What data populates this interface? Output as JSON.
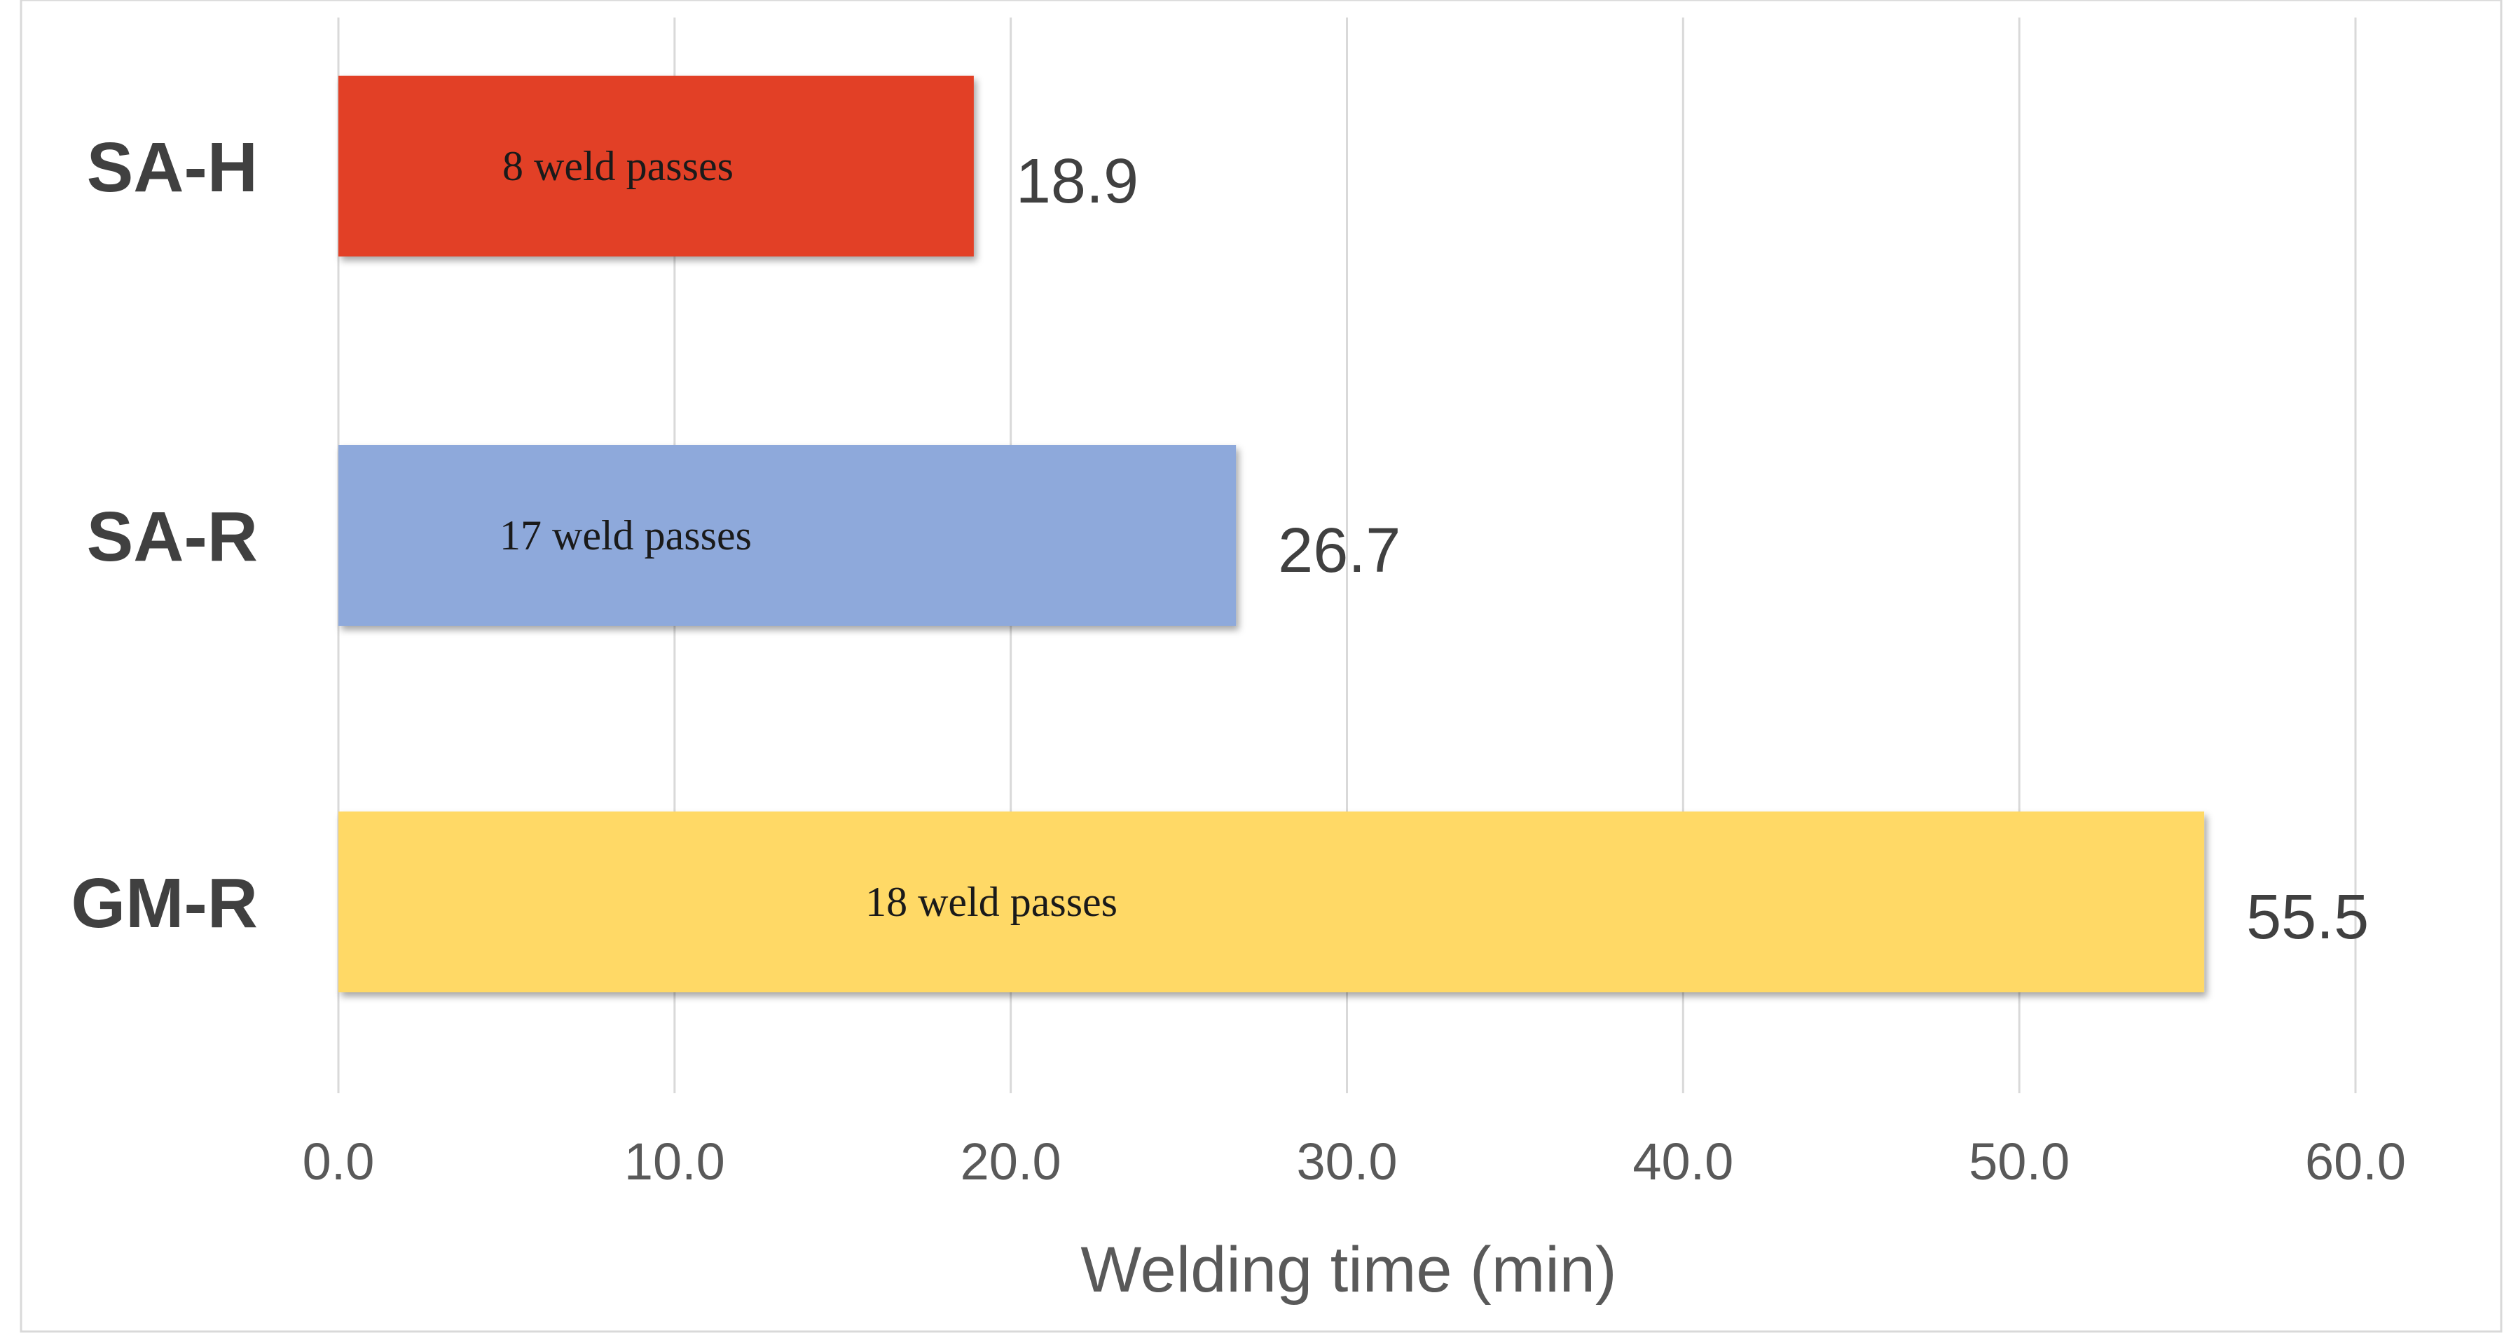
{
  "chart_data": {
    "type": "bar",
    "orientation": "horizontal",
    "title": "",
    "xlabel": "Welding time  (min)",
    "ylabel": "",
    "xlim": [
      0,
      60
    ],
    "x_ticks": [
      "0.0",
      "10.0",
      "20.0",
      "30.0",
      "40.0",
      "50.0",
      "60.0"
    ],
    "grid": "vertical",
    "legend": "none",
    "categories": [
      "SA-H",
      "SA-R",
      "GM-R"
    ],
    "values": [
      18.9,
      26.7,
      55.5
    ],
    "value_labels": [
      "18.9",
      "26.7",
      "55.5"
    ],
    "bar_annotations": [
      "8 weld passes",
      "17 weld passes",
      "18 weld passes"
    ],
    "colors": [
      "#E24026",
      "#8EA9DB",
      "#FFD966"
    ]
  }
}
